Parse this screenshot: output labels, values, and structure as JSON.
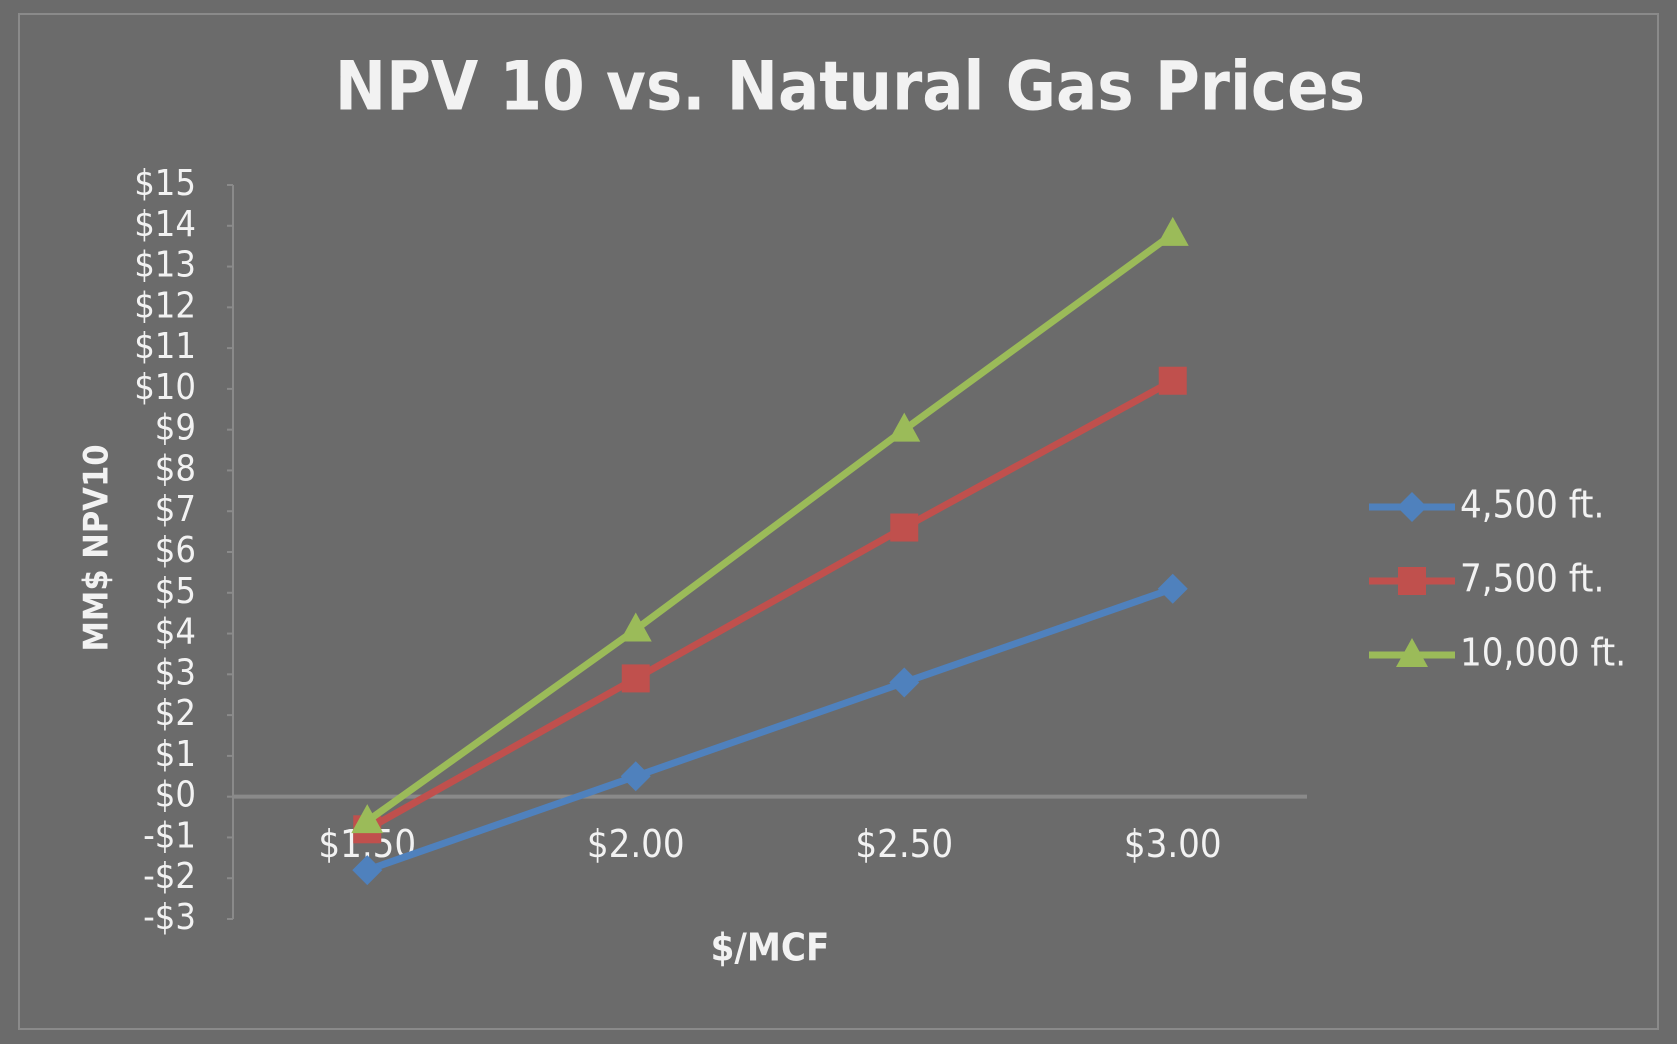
{
  "chart_data": {
    "type": "line",
    "title": "NPV 10 vs. Natural Gas Prices",
    "x_label": "$/MCF",
    "y_label": "MM$ NPV10",
    "categories": [
      "$1.50",
      "$2.00",
      "$2.50",
      "$3.00"
    ],
    "series": [
      {
        "name": "4,500 ft.",
        "color": "#4f81bd",
        "marker": "diamond",
        "values": [
          -1.8,
          0.5,
          2.8,
          5.1
        ]
      },
      {
        "name": "7,500 ft.",
        "color": "#c0504d",
        "marker": "square",
        "values": [
          -0.8,
          2.9,
          6.6,
          10.2
        ]
      },
      {
        "name": "10,000 ft.",
        "color": "#9bbb59",
        "marker": "triangle",
        "values": [
          -0.6,
          4.1,
          9.0,
          13.8
        ]
      }
    ],
    "ylim": [
      -3,
      15
    ],
    "yticks": [
      {
        "value": -3,
        "label": "-$3"
      },
      {
        "value": -2,
        "label": "-$2"
      },
      {
        "value": -1,
        "label": "-$1"
      },
      {
        "value": 0,
        "label": "$0"
      },
      {
        "value": 1,
        "label": "$1"
      },
      {
        "value": 2,
        "label": "$2"
      },
      {
        "value": 3,
        "label": "$3"
      },
      {
        "value": 4,
        "label": "$4"
      },
      {
        "value": 5,
        "label": "$5"
      },
      {
        "value": 6,
        "label": "$6"
      },
      {
        "value": 7,
        "label": "$7"
      },
      {
        "value": 8,
        "label": "$8"
      },
      {
        "value": 9,
        "label": "$9"
      },
      {
        "value": 10,
        "label": "$10"
      },
      {
        "value": 11,
        "label": "$11"
      },
      {
        "value": 12,
        "label": "$12"
      },
      {
        "value": 13,
        "label": "$13"
      },
      {
        "value": 14,
        "label": "$14"
      },
      {
        "value": 15,
        "label": "$15"
      }
    ],
    "legend": "right"
  }
}
